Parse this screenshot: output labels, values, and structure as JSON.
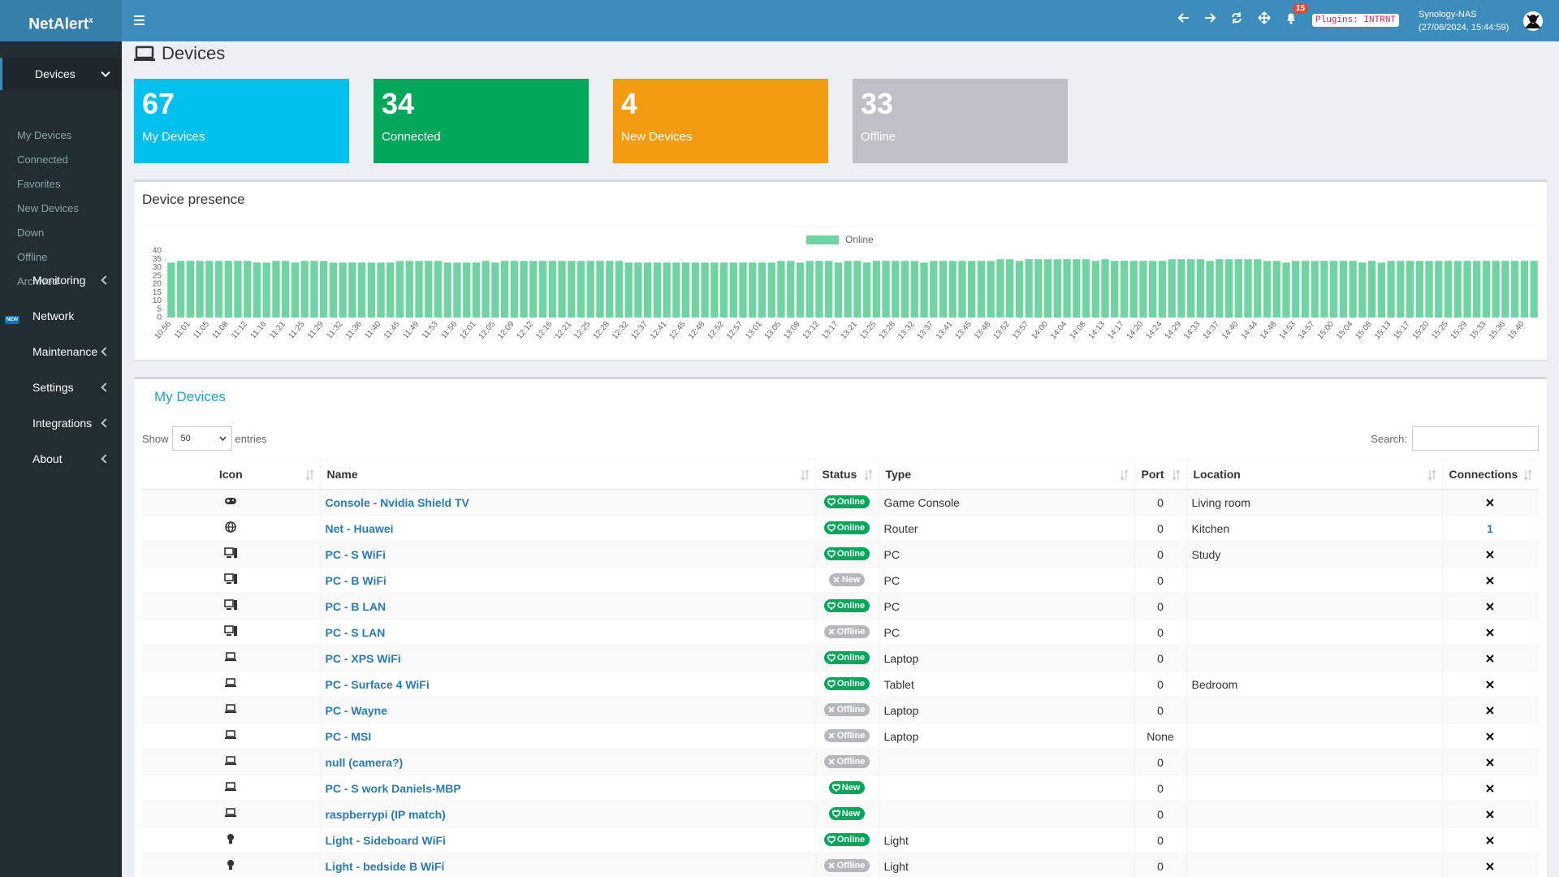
{
  "header": {
    "logo": "NetAlert",
    "logo_sup": "x",
    "notification_count": 15,
    "plugins": "Plugins: INTRNT",
    "host": "Synology-NAS",
    "timestamp": "(27/06/2024, 15:44:59)"
  },
  "sidebar": {
    "new_badge": "NEW",
    "items": [
      {
        "label": "Devices",
        "children": [
          "My Devices",
          "Connected",
          "Favorites",
          "New Devices",
          "Down",
          "Offline",
          "Archived"
        ]
      },
      {
        "label": "Monitoring"
      },
      {
        "label": "Network"
      },
      {
        "label": "Maintenance"
      },
      {
        "label": "Settings"
      },
      {
        "label": "Integrations"
      },
      {
        "label": "About"
      }
    ]
  },
  "page_title": "Devices",
  "tiles": [
    {
      "value": 67,
      "label": "My Devices",
      "color": "#00c0ef"
    },
    {
      "value": 34,
      "label": "Connected",
      "color": "#00a65a"
    },
    {
      "value": 4,
      "label": "New Devices",
      "color": "#f39c12"
    },
    {
      "value": 33,
      "label": "Offline",
      "color": "#bdc0c6"
    }
  ],
  "chart_data": {
    "type": "bar",
    "title": "Device presence",
    "categories": [
      "10:56",
      null,
      "11:01",
      null,
      "11:05",
      null,
      "11:08",
      null,
      "11:12",
      null,
      "11:16",
      null,
      "11:21",
      null,
      "11:25",
      null,
      "11:29",
      null,
      "11:32",
      null,
      "11:36",
      null,
      "11:40",
      null,
      "11:45",
      null,
      "11:49",
      null,
      "11:53",
      null,
      "11:56",
      null,
      "12:01",
      null,
      "12:05",
      null,
      "12:09",
      null,
      "12:12",
      null,
      "12:16",
      null,
      "12:21",
      null,
      "12:25",
      null,
      "12:28",
      null,
      "12:32",
      null,
      "12:37",
      null,
      "12:41",
      null,
      "12:45",
      null,
      "12:48",
      null,
      "12:52",
      null,
      "12:57",
      null,
      "13:01",
      null,
      "13:05",
      null,
      "13:08",
      null,
      "13:12",
      null,
      "13:17",
      null,
      "13:21",
      null,
      "13:25",
      null,
      "13:28",
      null,
      "13:32",
      null,
      "13:37",
      null,
      "13:41",
      null,
      "13:45",
      null,
      "13:48",
      null,
      "13:52",
      null,
      "13:57",
      null,
      "14:00",
      null,
      "14:04",
      null,
      "14:08",
      null,
      "14:13",
      null,
      "14:17",
      null,
      "14:20",
      null,
      "14:24",
      null,
      "14:29",
      null,
      "14:33",
      null,
      "14:37",
      null,
      "14:40",
      null,
      "14:44",
      null,
      "14:48",
      null,
      "14:53",
      null,
      "14:57",
      null,
      "15:00",
      null,
      "15:04",
      null,
      "15:08",
      null,
      "15:13",
      null,
      "15:17",
      null,
      "15:20",
      null,
      "15:25",
      null,
      "15:29",
      null,
      "15:33",
      null,
      "15:36",
      null,
      "15:40",
      null
    ],
    "series": [
      {
        "name": "Online",
        "color": "#6fd3a2",
        "values": [
          33,
          34,
          34,
          34,
          34,
          34,
          34,
          34,
          34,
          33,
          33,
          34,
          34,
          33,
          34,
          34,
          34,
          33,
          33,
          33,
          33,
          33,
          33,
          33,
          34,
          34,
          34,
          34,
          34,
          33,
          33,
          33,
          33,
          34,
          33,
          34,
          34,
          34,
          34,
          34,
          34,
          34,
          34,
          34,
          34,
          34,
          34,
          34,
          33,
          33,
          33,
          33,
          33,
          33,
          33,
          33,
          33,
          33,
          33,
          33,
          33,
          33,
          33,
          33,
          34,
          34,
          33,
          34,
          34,
          34,
          33,
          34,
          34,
          33,
          34,
          34,
          34,
          34,
          34,
          33,
          34,
          34,
          34,
          34,
          34,
          34,
          34,
          35,
          35,
          34,
          35,
          35,
          35,
          35,
          35,
          35,
          35,
          34,
          35,
          34,
          34,
          34,
          34,
          34,
          34,
          35,
          35,
          35,
          35,
          34,
          35,
          35,
          35,
          35,
          35,
          34,
          34,
          33,
          34,
          34,
          34,
          34,
          34,
          34,
          34,
          33,
          34,
          33,
          34,
          34,
          34,
          34,
          34,
          34,
          34,
          34,
          34,
          34,
          34,
          34,
          34,
          34,
          34,
          34
        ]
      }
    ],
    "ylim": [
      0,
      40
    ],
    "yticks": [
      0,
      5,
      10,
      15,
      20,
      25,
      30,
      35,
      40
    ],
    "legend": "top"
  },
  "table": {
    "title": "My Devices",
    "show": "Show",
    "page_length": 50,
    "entries": "entries",
    "search": "Search:",
    "columns": [
      "Icon",
      "Name",
      "Status",
      "Type",
      "Port",
      "Location",
      "Connections"
    ],
    "rows": [
      {
        "name": "Console - Nvidia Shield TV",
        "status": "Online",
        "status_color": "#00a65a",
        "type": "Game Console",
        "port": 0,
        "location": "Living room",
        "connections": null
      },
      {
        "name": "Net - Huawei",
        "status": "Online",
        "status_color": "#00a65a",
        "type": "Router",
        "port": 0,
        "location": "Kitchen",
        "connections": 1
      },
      {
        "name": "PC - S WiFi",
        "status": "Online",
        "status_color": "#00a65a",
        "type": "PC",
        "port": 0,
        "location": "Study",
        "connections": null
      },
      {
        "name": "PC - B WiFi",
        "status": "New",
        "status_color": "#b5b8bd",
        "type": "PC",
        "port": 0,
        "location": null,
        "connections": null
      },
      {
        "name": "PC - B LAN",
        "status": "Online",
        "status_color": "#00a65a",
        "type": "PC",
        "port": 0,
        "location": null,
        "connections": null
      },
      {
        "name": "PC - S LAN",
        "status": "Offline",
        "status_color": "#b5b8bd",
        "type": "PC",
        "port": 0,
        "location": null,
        "connections": null
      },
      {
        "name": "PC - XPS WiFi",
        "status": "Online",
        "status_color": "#00a65a",
        "type": "Laptop",
        "port": 0,
        "location": null,
        "connections": null
      },
      {
        "name": "PC - Surface 4 WiFi",
        "status": "Online",
        "status_color": "#00a65a",
        "type": "Tablet",
        "port": 0,
        "location": "Bedroom",
        "connections": null
      },
      {
        "name": "PC - Wayne",
        "status": "Offline",
        "status_color": "#b5b8bd",
        "type": "Laptop",
        "port": 0,
        "location": null,
        "connections": null
      },
      {
        "name": "PC - MSI",
        "status": "Offline",
        "status_color": "#b5b8bd",
        "type": "Laptop",
        "port": "None",
        "location": null,
        "connections": null
      },
      {
        "name": "null (camera?)",
        "status": "Offline",
        "status_color": "#b5b8bd",
        "type": null,
        "port": 0,
        "location": null,
        "connections": null
      },
      {
        "name": "PC - S work Daniels-MBP",
        "status": "New",
        "status_color": "#00a65a",
        "type": null,
        "port": 0,
        "location": null,
        "connections": null
      },
      {
        "name": "raspberrypi (IP match)",
        "status": "New",
        "status_color": "#00a65a",
        "type": null,
        "port": 0,
        "location": null,
        "connections": null
      },
      {
        "name": "Light - Sideboard WiFi",
        "status": "Online",
        "status_color": "#00a65a",
        "type": "Light",
        "port": 0,
        "location": null,
        "connections": null
      },
      {
        "name": "Light - bedside B WiFi",
        "status": "Offline",
        "status_color": "#b5b8bd",
        "type": "Light",
        "port": 0,
        "location": null,
        "connections": null
      }
    ]
  }
}
